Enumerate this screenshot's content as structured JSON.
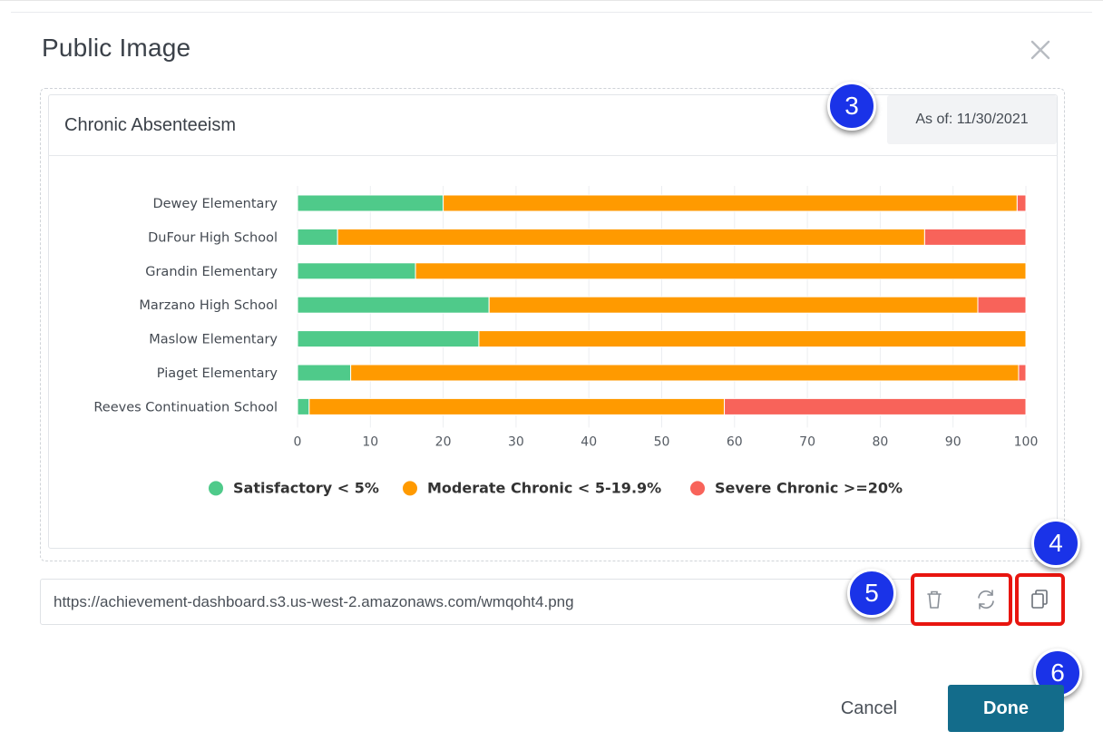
{
  "modal": {
    "title": "Public Image",
    "close_icon": "close-icon"
  },
  "card": {
    "title": "Chronic Absenteeism",
    "as_of": "As of: 11/30/2021"
  },
  "chart_data": {
    "type": "bar",
    "orientation": "horizontal",
    "stacked": true,
    "categories": [
      "Dewey Elementary",
      "DuFour High School",
      "Grandin Elementary",
      "Marzano High School",
      "Maslow Elementary",
      "Piaget Elementary",
      "Reeves Continuation School"
    ],
    "series": [
      {
        "name": "Satisfactory < 5%",
        "color": "#4fca8a",
        "values": [
          20,
          5.5,
          16.2,
          26.3,
          24.9,
          7.3,
          1.6
        ]
      },
      {
        "name": "Moderate Chronic < 5-19.9%",
        "color": "#ff9a00",
        "values": [
          78.8,
          80.6,
          83.8,
          67.1,
          75.1,
          91.7,
          57
        ]
      },
      {
        "name": "Severe Chronic >=20%",
        "color": "#f8635a",
        "values": [
          1.2,
          13.9,
          0,
          6.6,
          0,
          1,
          41.4
        ]
      }
    ],
    "xlim": [
      0,
      100
    ],
    "xticks": [
      0,
      10,
      20,
      30,
      40,
      50,
      60,
      70,
      80,
      90,
      100
    ],
    "grid": true,
    "legend_position": "bottom"
  },
  "url": {
    "value": "https://achievement-dashboard.s3.us-west-2.amazonaws.com/wmqoht4.png"
  },
  "actions": {
    "delete_icon": "trash-icon",
    "refresh_icon": "refresh-icon",
    "copy_icon": "copy-icon"
  },
  "badges": {
    "b3": "3",
    "b4": "4",
    "b5": "5",
    "b6": "6",
    "color": "#1a33e8"
  },
  "footer": {
    "cancel_label": "Cancel",
    "done_label": "Done",
    "done_color": "#136c8b"
  }
}
